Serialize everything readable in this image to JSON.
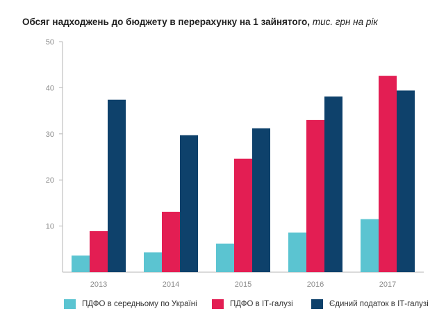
{
  "title": {
    "main": "Обсяг надходжень до бюджету в перерахунку на 1 зайнятого,",
    "unit": "тис. грн на рік"
  },
  "colors": {
    "series": [
      "#5bc4d1",
      "#e31e53",
      "#0e416b"
    ],
    "axis": "#b5b5b5",
    "tick_text": "#8a8a8a"
  },
  "chart_data": {
    "type": "bar",
    "title": "Обсяг надходжень до бюджету в перерахунку на 1 зайнятого, тис. грн на рік",
    "categories": [
      "2013",
      "2014",
      "2015",
      "2016",
      "2017"
    ],
    "series": [
      {
        "name": "ПДФО в середньому по Україні",
        "values": [
          3.6,
          4.3,
          6.2,
          8.6,
          11.5
        ]
      },
      {
        "name": "ПДФО в ІТ-галузі",
        "values": [
          8.9,
          13.1,
          24.6,
          33.0,
          42.6
        ]
      },
      {
        "name": "Єдиний податок в ІТ-галузі",
        "values": [
          37.4,
          29.7,
          31.2,
          38.1,
          39.4
        ]
      }
    ],
    "yticks": [
      "10",
      "20",
      "30",
      "40",
      "50"
    ],
    "ylim": [
      0,
      50
    ],
    "xlabel": "",
    "ylabel": "",
    "legend_position": "bottom",
    "grid": false
  }
}
